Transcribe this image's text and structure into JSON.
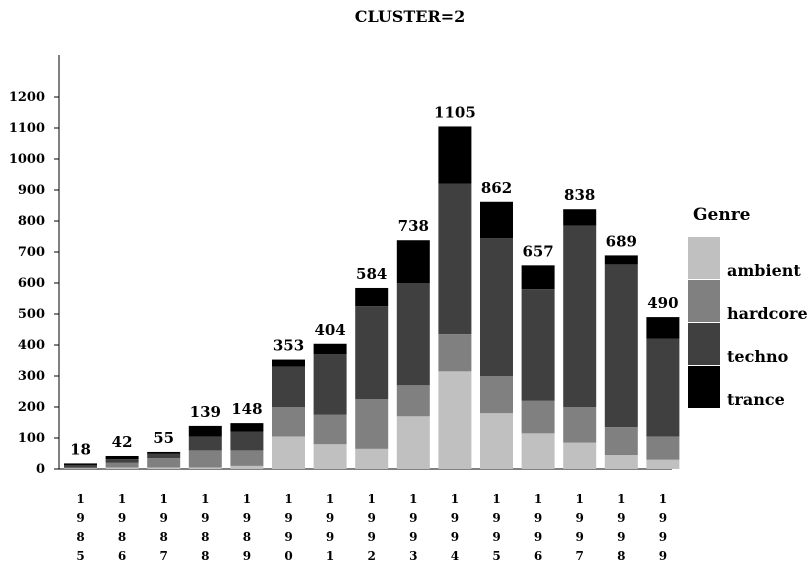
{
  "chart_data": {
    "type": "bar",
    "stacked": true,
    "title": "CLUSTER=2",
    "xlabel": "",
    "ylabel": "",
    "ylim": [
      0,
      1200
    ],
    "yticks": [
      0,
      100,
      200,
      300,
      400,
      500,
      600,
      700,
      800,
      900,
      1000,
      1100,
      1200
    ],
    "grid": false,
    "categories": [
      "1985",
      "1986",
      "1987",
      "1988",
      "1989",
      "1990",
      "1991",
      "1992",
      "1993",
      "1994",
      "1995",
      "1996",
      "1997",
      "1998",
      "1999"
    ],
    "series": [
      {
        "name": "ambient",
        "color": "#c0c0c0",
        "values": [
          2,
          5,
          5,
          5,
          10,
          105,
          80,
          65,
          170,
          315,
          180,
          115,
          85,
          45,
          30
        ]
      },
      {
        "name": "hardcore",
        "color": "#808080",
        "values": [
          3,
          15,
          30,
          55,
          50,
          95,
          95,
          160,
          100,
          120,
          120,
          105,
          115,
          90,
          75
        ]
      },
      {
        "name": "techno",
        "color": "#404040",
        "values": [
          8,
          12,
          15,
          45,
          60,
          130,
          195,
          300,
          330,
          485,
          445,
          360,
          585,
          525,
          315
        ]
      },
      {
        "name": "trance",
        "color": "#000000",
        "values": [
          5,
          10,
          5,
          34,
          28,
          23,
          34,
          59,
          138,
          185,
          117,
          77,
          53,
          29,
          70
        ]
      }
    ],
    "totals": [
      18,
      42,
      55,
      139,
      148,
      353,
      404,
      584,
      738,
      1105,
      862,
      657,
      838,
      689,
      490
    ],
    "legend": {
      "title": "Genre",
      "position": "right"
    }
  }
}
